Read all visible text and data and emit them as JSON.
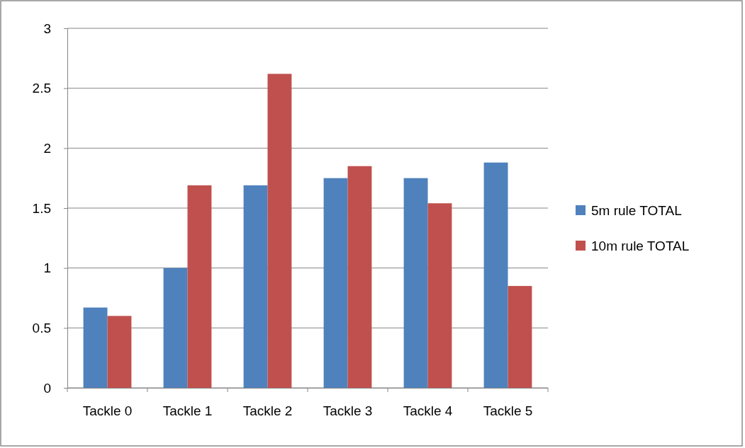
{
  "chart_data": {
    "type": "bar",
    "categories": [
      "Tackle 0",
      "Tackle 1",
      "Tackle 2",
      "Tackle 3",
      "Tackle 4",
      "Tackle 5"
    ],
    "series": [
      {
        "name": "5m rule TOTAL",
        "color": "#4f81bd",
        "values": [
          0.67,
          1.0,
          1.69,
          1.75,
          1.75,
          1.88
        ]
      },
      {
        "name": "10m rule TOTAL",
        "color": "#c0504d",
        "values": [
          0.6,
          1.69,
          2.62,
          1.85,
          1.54,
          0.85
        ]
      }
    ],
    "ylim": [
      0,
      3
    ],
    "yticks": [
      0,
      {
        "value": 0.5,
        "label": "0.5"
      },
      1,
      {
        "value": 1.5,
        "label": "1.5"
      },
      2,
      {
        "value": 2.5,
        "label": "2.5"
      },
      3
    ],
    "grid": "y",
    "legend": "right"
  }
}
